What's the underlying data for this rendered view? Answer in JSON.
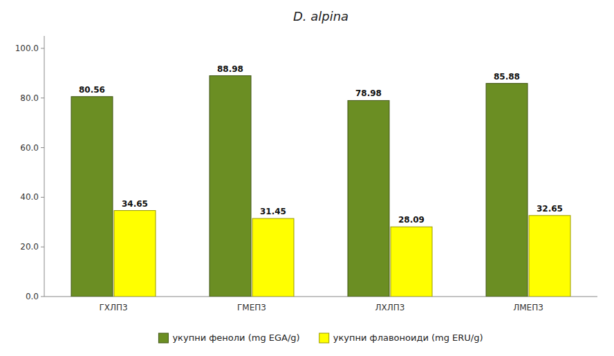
{
  "chart_data": {
    "type": "bar",
    "title": "D. alpina",
    "categories": [
      "ГХЛП3",
      "ГМЕП3",
      "ЛХЛП3",
      "ЛМЕП3"
    ],
    "series": [
      {
        "name": "укупни феноли (mg EGA/g)",
        "color": "#6B8E23",
        "values": [
          80.56,
          88.98,
          78.98,
          85.88
        ]
      },
      {
        "name": "укупни флавоноиди (mg ERU/g)",
        "color": "#FFFF00",
        "values": [
          34.65,
          31.45,
          28.09,
          32.65
        ]
      }
    ],
    "ylim": [
      0,
      105
    ],
    "yticks": [
      {
        "value": 0.0,
        "label": "0.0"
      },
      {
        "value": 20.0,
        "label": "20.0"
      },
      {
        "value": 40.0,
        "label": "40.0"
      },
      {
        "value": 60.0,
        "label": "60.0"
      },
      {
        "value": 80.0,
        "label": "80.0"
      },
      {
        "value": 100.0,
        "label": "100.0"
      }
    ],
    "grid": false,
    "legend": "bottom",
    "data_labels": true
  }
}
